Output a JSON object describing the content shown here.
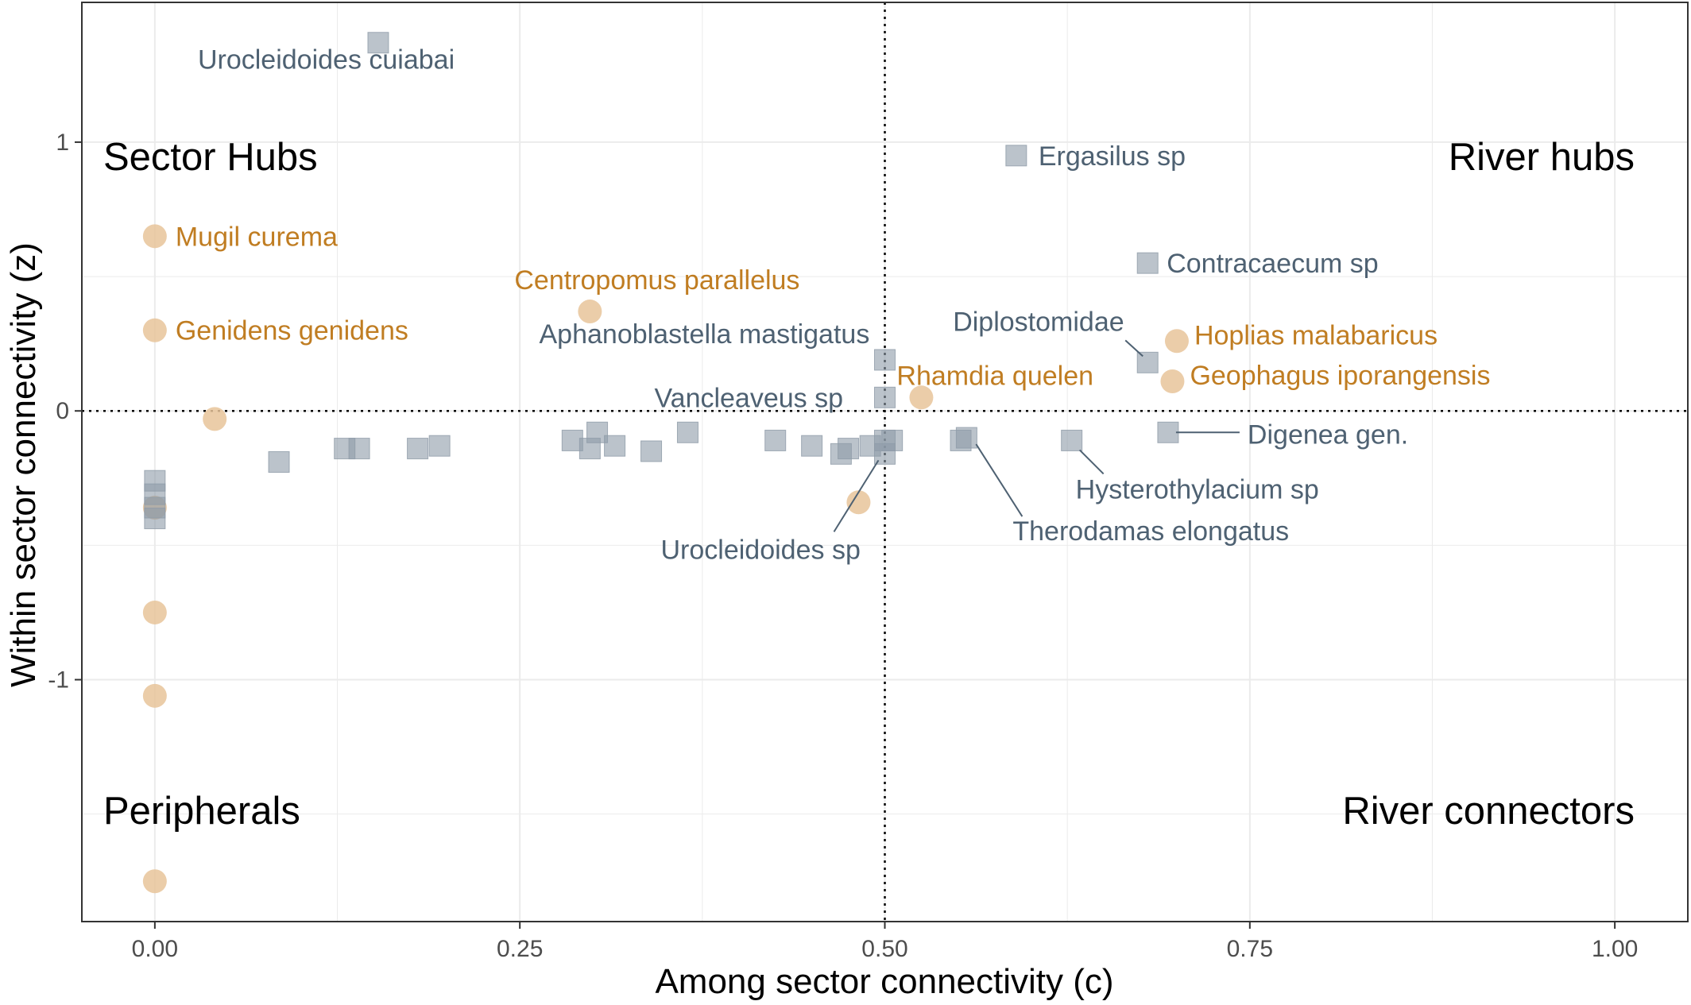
{
  "chart_data": {
    "type": "scatter",
    "title": "",
    "xlabel": "Among sector connectivity (c)",
    "ylabel": "Within sector connectivity (z)",
    "xlim": [
      -0.05,
      1.05
    ],
    "ylim": [
      -1.9,
      1.52
    ],
    "x_ticks": [
      0,
      0.25,
      0.5,
      0.75,
      1
    ],
    "x_tick_labels": [
      "0.00",
      "0.25",
      "0.50",
      "0.75",
      "1.00"
    ],
    "y_ticks": [
      -1,
      0,
      1
    ],
    "y_tick_labels": [
      "-1",
      "0",
      "1"
    ],
    "grid": true,
    "reference_lines": {
      "x": 0.5,
      "y": 0
    },
    "quadrant_labels": {
      "top_left": "Sector Hubs",
      "top_right": "River hubs",
      "bottom_left": "Peripherals",
      "bottom_right": "River connectors"
    },
    "colors": {
      "fish": "#e8c49a",
      "fish_label": "#c07d22",
      "parasite": "#8e9ba8",
      "parasite_label": "#4e6172",
      "grid": "#ebebeb"
    },
    "series": [
      {
        "marker": "circle",
        "points": [
          {
            "x": 0.0,
            "y": 0.65,
            "label": "Mugil curema"
          },
          {
            "x": 0.0,
            "y": 0.3,
            "label": "Genidens genidens"
          },
          {
            "x": 0.298,
            "y": 0.37,
            "label": "Centropomus parallelus"
          },
          {
            "x": 0.7,
            "y": 0.26,
            "label": "Hoplias malabaricus"
          },
          {
            "x": 0.697,
            "y": 0.11,
            "label": "Geophagus iporangensis"
          },
          {
            "x": 0.525,
            "y": 0.05,
            "label": "Rhamdia quelen"
          },
          {
            "x": 0.041,
            "y": -0.03
          },
          {
            "x": 0.0,
            "y": -0.36
          },
          {
            "x": 0.482,
            "y": -0.34
          },
          {
            "x": 0.0,
            "y": -0.75
          },
          {
            "x": 0.0,
            "y": -1.06
          },
          {
            "x": 0.0,
            "y": -1.75
          }
        ]
      },
      {
        "marker": "square",
        "points": [
          {
            "x": 0.153,
            "y": 1.37,
            "label": "Urocleidoides cuiabai"
          },
          {
            "x": 0.59,
            "y": 0.95,
            "label": "Ergasilus sp"
          },
          {
            "x": 0.68,
            "y": 0.55,
            "label": "Contracaecum sp"
          },
          {
            "x": 0.5,
            "y": 0.19,
            "label": "Aphanoblastella mastigatus"
          },
          {
            "x": 0.68,
            "y": 0.18,
            "label": "Diplostomidae"
          },
          {
            "x": 0.5,
            "y": 0.05,
            "label": "Vancleaveus sp"
          },
          {
            "x": 0.694,
            "y": -0.08,
            "label": "Digenea gen."
          },
          {
            "x": 0.628,
            "y": -0.11,
            "label": "Hysterothylacium sp"
          },
          {
            "x": 0.556,
            "y": -0.1,
            "label": "Therodamas elongatus"
          },
          {
            "x": 0.5,
            "y": -0.16,
            "label": "Urocleidoides sp"
          },
          {
            "x": 0.0,
            "y": -0.26
          },
          {
            "x": 0.0,
            "y": -0.31
          },
          {
            "x": 0.0,
            "y": -0.36
          },
          {
            "x": 0.0,
            "y": -0.4
          },
          {
            "x": 0.085,
            "y": -0.19
          },
          {
            "x": 0.13,
            "y": -0.14
          },
          {
            "x": 0.14,
            "y": -0.14
          },
          {
            "x": 0.18,
            "y": -0.14
          },
          {
            "x": 0.195,
            "y": -0.13
          },
          {
            "x": 0.286,
            "y": -0.11
          },
          {
            "x": 0.298,
            "y": -0.14
          },
          {
            "x": 0.303,
            "y": -0.08
          },
          {
            "x": 0.315,
            "y": -0.13
          },
          {
            "x": 0.34,
            "y": -0.15
          },
          {
            "x": 0.365,
            "y": -0.08
          },
          {
            "x": 0.425,
            "y": -0.11
          },
          {
            "x": 0.45,
            "y": -0.13
          },
          {
            "x": 0.47,
            "y": -0.16
          },
          {
            "x": 0.475,
            "y": -0.14
          },
          {
            "x": 0.49,
            "y": -0.13
          },
          {
            "x": 0.5,
            "y": -0.11
          },
          {
            "x": 0.505,
            "y": -0.11
          },
          {
            "x": 0.552,
            "y": -0.11
          }
        ]
      }
    ]
  }
}
